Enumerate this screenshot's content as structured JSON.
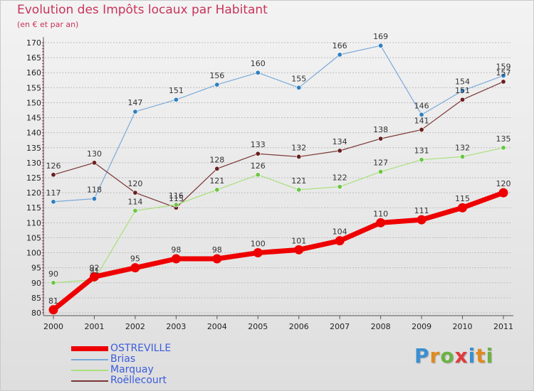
{
  "header": {
    "title": "Evolution des Impôts locaux par Habitant",
    "subtitle": "(en € et par an)"
  },
  "logo": {
    "letters": [
      "P",
      "r",
      "o",
      "x",
      "i",
      "t",
      "i"
    ],
    "colors": [
      "#3a8fd0",
      "#e08a1e",
      "#6bb344",
      "#e03a3a",
      "#3a8fd0",
      "#e08a1e",
      "#6bb344"
    ]
  },
  "colors": {
    "title": "#c8335b",
    "grid": "#bdbdbd",
    "legend_text": "#3b5bdb"
  },
  "chart_data": {
    "type": "line",
    "title": "Evolution des Impôts locaux par Habitant",
    "subtitle": "(en € et par an)",
    "x": [
      "2000",
      "2001",
      "2002",
      "2003",
      "2004",
      "2005",
      "2006",
      "2007",
      "2008",
      "2009",
      "2010",
      "2011"
    ],
    "ylim": [
      80,
      170
    ],
    "yticks": [
      80,
      85,
      90,
      95,
      100,
      105,
      110,
      115,
      120,
      125,
      130,
      135,
      140,
      145,
      150,
      155,
      160,
      165,
      170
    ],
    "grid": "horizontal dashed",
    "legend_position": "bottom-left",
    "series": [
      {
        "name": "OSTREVILLE",
        "values": [
          81,
          92,
          95,
          98,
          98,
          100,
          101,
          104,
          110,
          111,
          115,
          120
        ],
        "color": "#ee0000",
        "marker": "#ee0000",
        "width": 7
      },
      {
        "name": "Brias",
        "values": [
          117,
          118,
          147,
          151,
          156,
          160,
          155,
          166,
          169,
          146,
          154,
          159
        ],
        "color": "#7aaad8",
        "marker": "#2f7fc0",
        "width": 1.2
      },
      {
        "name": "Marquay",
        "values": [
          90,
          91,
          114,
          116,
          121,
          126,
          121,
          122,
          127,
          131,
          132,
          135
        ],
        "color": "#a8e07a",
        "marker": "#6cc644",
        "width": 1.2
      },
      {
        "name": "Roëllecourt",
        "values": [
          126,
          130,
          120,
          115,
          128,
          133,
          132,
          134,
          138,
          141,
          151,
          157
        ],
        "color": "#7a3535",
        "marker": "#6a1f1f",
        "width": 1.2
      }
    ]
  }
}
